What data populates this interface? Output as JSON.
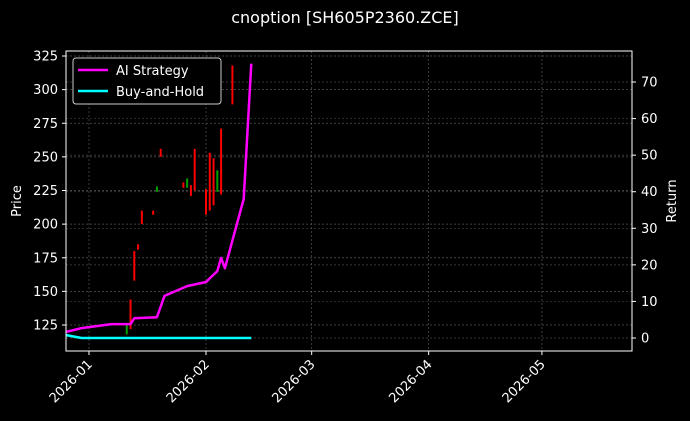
{
  "figure": {
    "title": "cnoption [SH605P2360.ZCE]",
    "background": "#000000",
    "foreground": "#ffffff"
  },
  "chart_data": {
    "type": "line",
    "title": "cnoption [SH605P2360.ZCE]",
    "xlabel": "",
    "ylabel": "Price",
    "y2label": "Return",
    "ylim": [
      113,
      328
    ],
    "y2lim": [
      -4,
      77
    ],
    "xlim": [
      "2025-12-26",
      "2026-05-26"
    ],
    "grid": true,
    "legend_position": "upper left",
    "x_ticks": [
      "2026-01",
      "2026-02",
      "2026-03",
      "2026-04",
      "2026-05"
    ],
    "y_ticks": [
      125,
      150,
      175,
      200,
      225,
      250,
      275,
      300,
      325
    ],
    "y2_ticks": [
      0,
      10,
      20,
      30,
      40,
      50,
      60,
      70
    ],
    "legend": [
      "AI Strategy",
      "Buy-and-Hold"
    ],
    "series": [
      {
        "name": "AI Strategy",
        "axis": "right",
        "color": "#ff00ff",
        "points": [
          {
            "x": "2025-12-26",
            "y": 1.7
          },
          {
            "x": "2025-12-30",
            "y": 2.7
          },
          {
            "x": "2026-01-07",
            "y": 3.8
          },
          {
            "x": "2026-01-12",
            "y": 3.8
          },
          {
            "x": "2026-01-13",
            "y": 5.4
          },
          {
            "x": "2026-01-19",
            "y": 5.7
          },
          {
            "x": "2026-01-21",
            "y": 11.5
          },
          {
            "x": "2026-01-27",
            "y": 14.2
          },
          {
            "x": "2026-02-01",
            "y": 15.3
          },
          {
            "x": "2026-02-04",
            "y": 18.3
          },
          {
            "x": "2026-02-05",
            "y": 21.9
          },
          {
            "x": "2026-02-06",
            "y": 19.1
          },
          {
            "x": "2026-02-11",
            "y": 38.0
          },
          {
            "x": "2026-02-13",
            "y": 75.0
          }
        ]
      },
      {
        "name": "Buy-and-Hold",
        "axis": "right",
        "color": "#00ffff",
        "points": [
          {
            "x": "2025-12-26",
            "y": 0.8
          },
          {
            "x": "2025-12-30",
            "y": 0.0
          },
          {
            "x": "2026-02-13",
            "y": 0.0
          }
        ]
      }
    ],
    "candles": {
      "axis": "left",
      "up_color": "#00a000",
      "down_color": "#ff0000",
      "items": [
        {
          "x": "2026-01-11",
          "low": 118,
          "high": 125,
          "dir": "up"
        },
        {
          "x": "2026-01-12",
          "low": 122,
          "high": 144,
          "dir": "down"
        },
        {
          "x": "2026-01-13",
          "low": 158,
          "high": 180,
          "dir": "down"
        },
        {
          "x": "2026-01-14",
          "low": 181,
          "high": 185,
          "dir": "down"
        },
        {
          "x": "2026-01-15",
          "low": 200,
          "high": 210,
          "dir": "down"
        },
        {
          "x": "2026-01-18",
          "low": 207,
          "high": 210,
          "dir": "down"
        },
        {
          "x": "2026-01-19",
          "low": 224,
          "high": 228,
          "dir": "up"
        },
        {
          "x": "2026-01-20",
          "low": 250,
          "high": 256,
          "dir": "down"
        },
        {
          "x": "2026-01-26",
          "low": 227,
          "high": 231,
          "dir": "down"
        },
        {
          "x": "2026-01-27",
          "low": 227,
          "high": 234,
          "dir": "up"
        },
        {
          "x": "2026-01-28",
          "low": 221,
          "high": 229,
          "dir": "down"
        },
        {
          "x": "2026-01-29",
          "low": 225,
          "high": 256,
          "dir": "down"
        },
        {
          "x": "2026-02-01",
          "low": 207,
          "high": 226,
          "dir": "down"
        },
        {
          "x": "2026-02-02",
          "low": 210,
          "high": 253,
          "dir": "down"
        },
        {
          "x": "2026-02-03",
          "low": 214,
          "high": 249,
          "dir": "down"
        },
        {
          "x": "2026-02-04",
          "low": 224,
          "high": 240,
          "dir": "up"
        },
        {
          "x": "2026-02-05",
          "low": 222,
          "high": 271,
          "dir": "down"
        },
        {
          "x": "2026-02-08",
          "low": 289,
          "high": 318,
          "dir": "down"
        }
      ]
    }
  }
}
